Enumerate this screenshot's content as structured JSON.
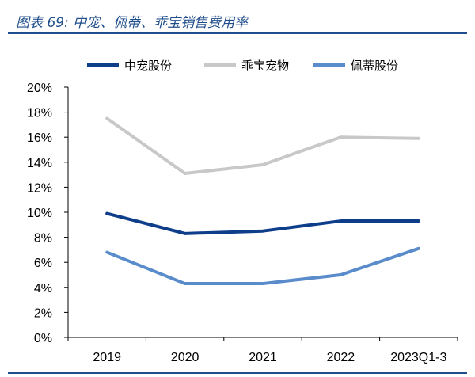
{
  "header": {
    "title": "图表 69:  中宠、佩蒂、乖宝销售费用率"
  },
  "chart_data": {
    "type": "line",
    "title": "图表 69:  中宠、佩蒂、乖宝销售费用率",
    "xlabel": "",
    "ylabel": "",
    "categories": [
      "2019",
      "2020",
      "2021",
      "2022",
      "2023Q1-3"
    ],
    "y_ticks": [
      "0%",
      "2%",
      "4%",
      "6%",
      "8%",
      "10%",
      "12%",
      "14%",
      "16%",
      "18%",
      "20%"
    ],
    "ylim": [
      0,
      20
    ],
    "grid": false,
    "legend_position": "top",
    "series": [
      {
        "name": "中宠股份",
        "color": "#0e3d8a",
        "values": [
          9.9,
          8.3,
          8.5,
          9.3,
          9.3
        ]
      },
      {
        "name": "乖宝宠物",
        "color": "#c8c8c8",
        "values": [
          17.5,
          13.1,
          13.8,
          16.0,
          15.9
        ]
      },
      {
        "name": "佩蒂股份",
        "color": "#5a8ccb",
        "values": [
          6.8,
          4.3,
          4.3,
          5.0,
          7.1
        ]
      }
    ]
  }
}
